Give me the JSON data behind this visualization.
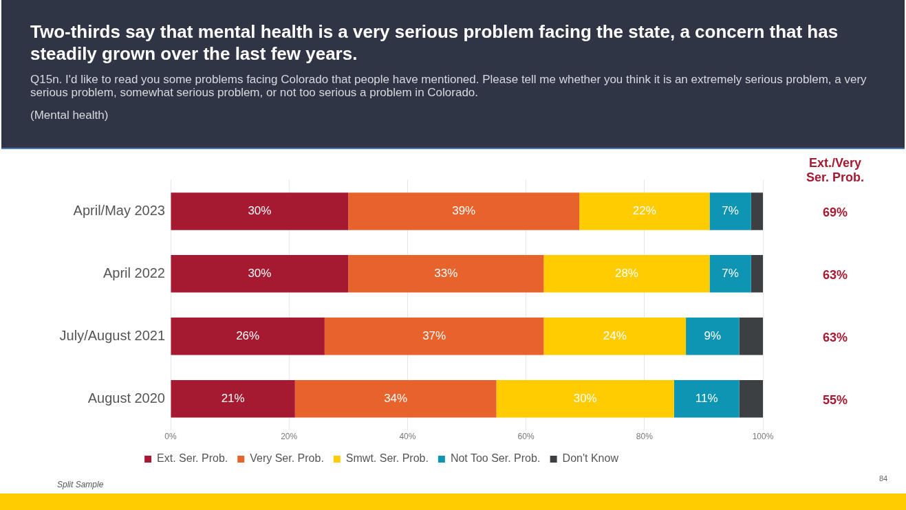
{
  "chart_data": {
    "type": "bar",
    "orientation": "horizontal",
    "stacked": true,
    "title": "Two-thirds say that mental health is a very serious problem facing the state, a concern that has steadily grown over the last few years.",
    "subtitle": "Q15n. I'd like to read you some problems facing Colorado that people have mentioned. Please tell me whether you think it is an extremely serious problem, a very serious problem, somewhat serious problem, or not too serious a problem in Colorado.",
    "categories": [
      "April/May 2023",
      "April 2022",
      "July/August 2021",
      "August 2020"
    ],
    "series": [
      {
        "name": "Ext. Ser. Prob.",
        "color": "#a51a30",
        "values": [
          30,
          30,
          26,
          21
        ],
        "value_labels": [
          "30%",
          "30%",
          "26%",
          "21%"
        ]
      },
      {
        "name": "Very Ser. Prob.",
        "color": "#e8622c",
        "values": [
          39,
          33,
          37,
          34
        ],
        "value_labels": [
          "39%",
          "33%",
          "37%",
          "34%"
        ]
      },
      {
        "name": "Smwt. Ser. Prob.",
        "color": "#fecc00",
        "values": [
          22,
          28,
          24,
          30
        ],
        "value_labels": [
          "22%",
          "28%",
          "24%",
          "30%"
        ]
      },
      {
        "name": "Not Too Ser. Prob.",
        "color": "#0e95b4",
        "values": [
          7,
          7,
          9,
          11
        ],
        "value_labels": [
          "7%",
          "7%",
          "9%",
          "11%"
        ]
      },
      {
        "name": "Don't Know",
        "color": "#3d4043",
        "values": [
          2,
          2,
          4,
          4
        ],
        "value_labels": [
          null,
          null,
          null,
          null
        ]
      }
    ],
    "xlim": [
      0,
      100
    ],
    "xticks": [
      {
        "value": 0,
        "label": "0%"
      },
      {
        "value": 20,
        "label": "20%"
      },
      {
        "value": 40,
        "label": "40%"
      },
      {
        "value": 60,
        "label": "60%"
      },
      {
        "value": 80,
        "label": "80%"
      },
      {
        "value": 100,
        "label": "100%"
      }
    ],
    "grid": "x",
    "legend": "bottom",
    "annotations": [
      "(Mental health)",
      "Ext./Very Ser. Prob.",
      "69%",
      "63%",
      "63%",
      "55%",
      "Split Sample",
      "84"
    ]
  }
}
